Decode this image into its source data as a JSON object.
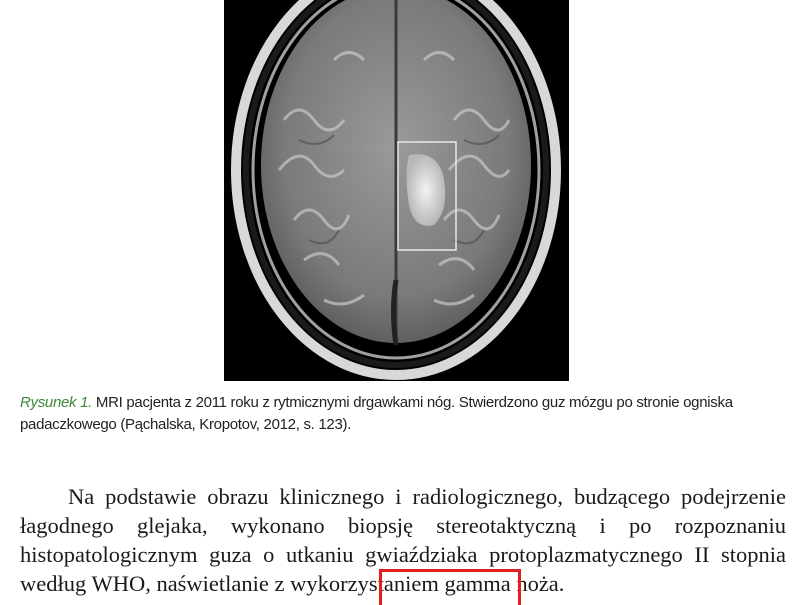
{
  "figure": {
    "description_icon": "brain-mri-scan"
  },
  "caption": {
    "label": "Rysunek 1.",
    "text": " MRI pacjenta z 2011 roku z rytmicznymi drgawkami nóg. Stwierdzono guz mózgu po stronie ogniska padaczkowego (Pąchalska, Kropotov, 2012, s. 123)."
  },
  "paragraph": {
    "text_before": "Na podstawie obrazu klinicznego i radiologicznego, budzącego podejrzenie łagodnego glejaka, wykonano biopsję stereotaktyczną i po rozpoznaniu histopatologicznym guza o utkaniu gwiaździaka protoplazmatycznego II stopnia według WHO, naświetlanie z wykorzystaniem ",
    "highlighted": "gamma noża."
  },
  "colors": {
    "caption_label": "#3d8a3d",
    "highlight_border": "#e02020"
  }
}
